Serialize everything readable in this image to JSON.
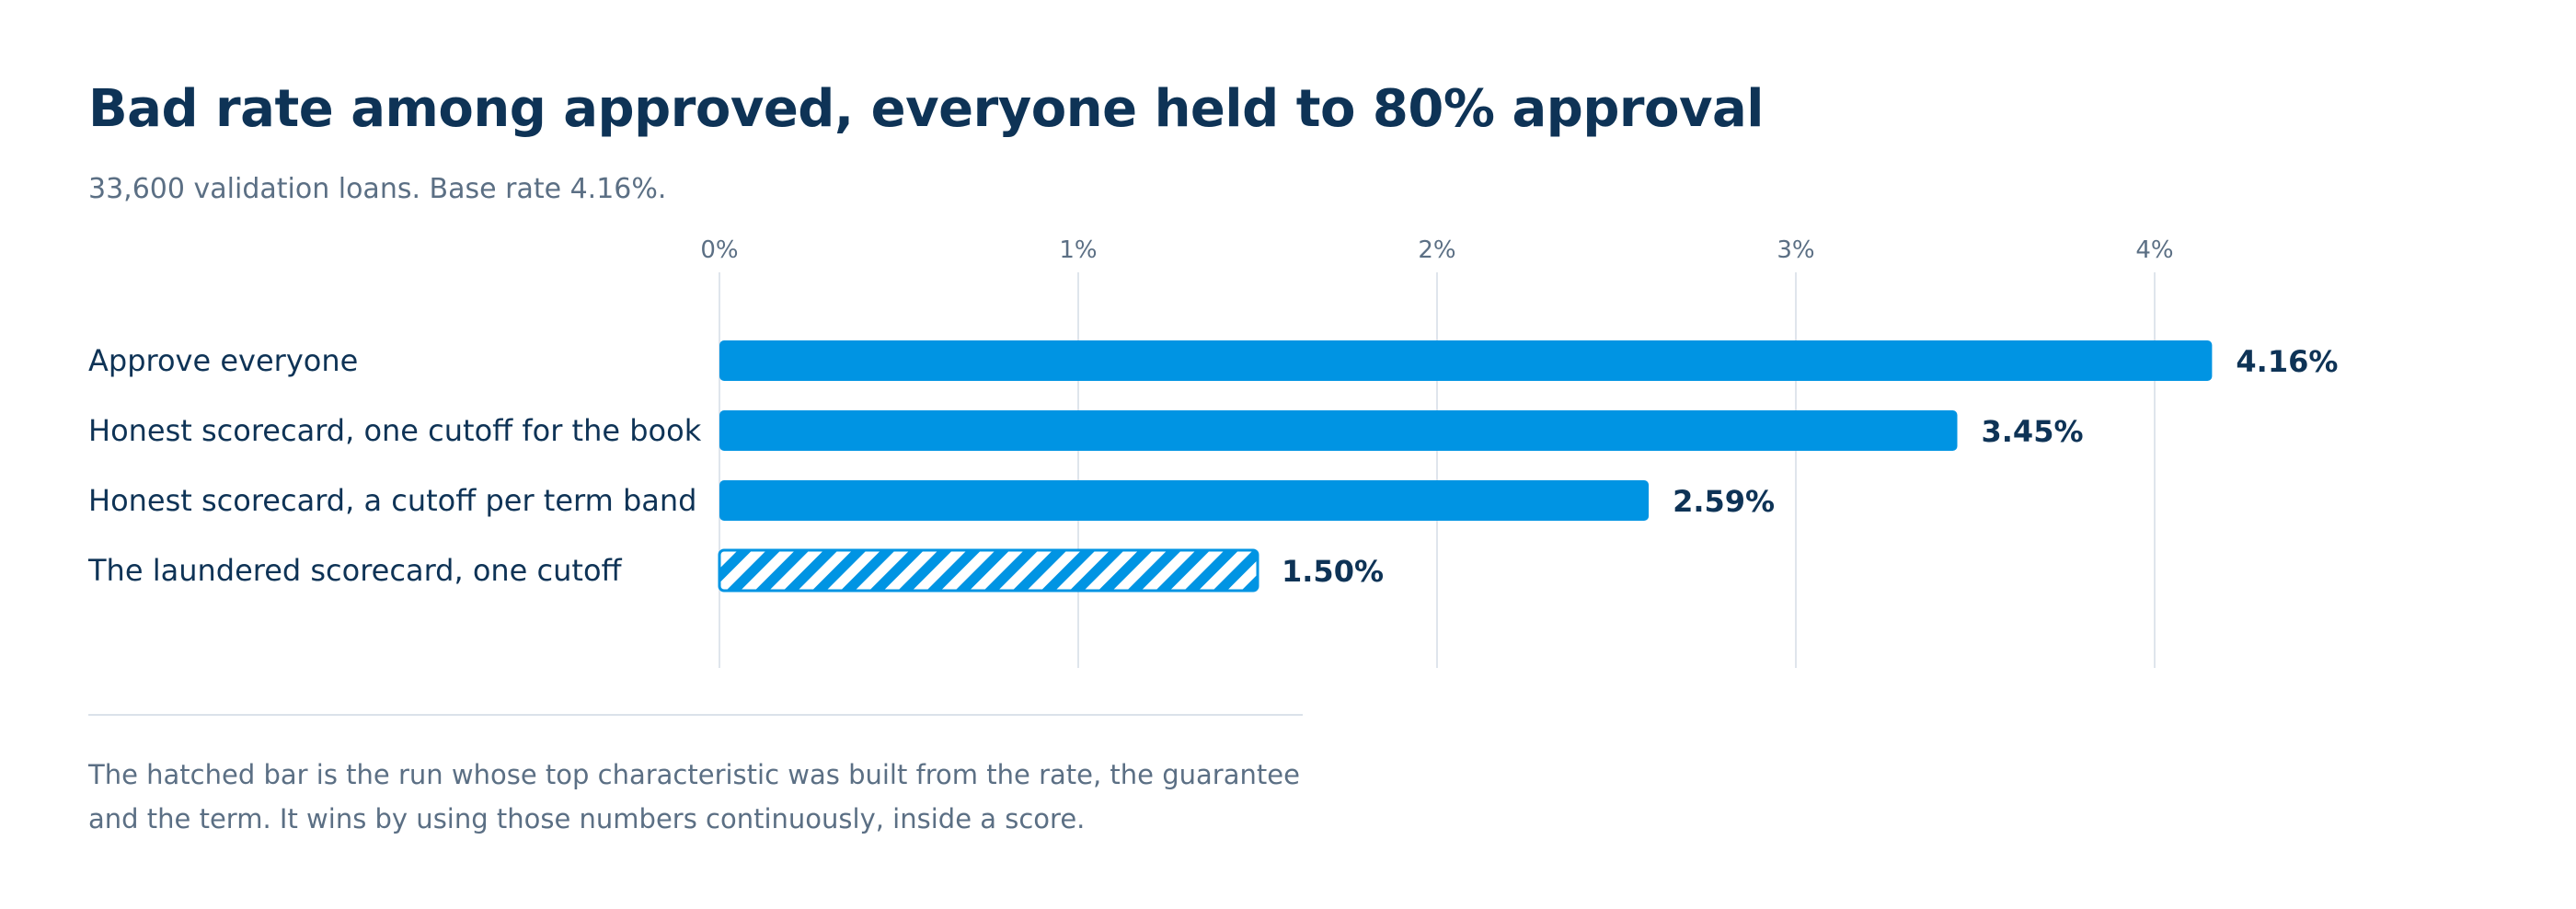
{
  "colors": {
    "bar": "#0094e3",
    "gridline": "#dfe5ec",
    "tick_text": "#5b6f84",
    "label_text": "#0e3356",
    "hatch_bg": "#ffffff"
  },
  "footnote": "The hatched bar is the run whose top characteristic was built from the rate, the guarantee and the term. It wins by using those numbers continuously, inside a score.",
  "chart_data": {
    "type": "bar",
    "orientation": "horizontal",
    "title": "Bad rate among approved, everyone held to 80% approval",
    "subtitle": "33,600 validation loans. Base rate 4.16%.",
    "categories": [
      "Approve everyone",
      "Honest scorecard, one cutoff for the book",
      "Honest scorecard, a cutoff per term band",
      "The laundered scorecard, one cutoff"
    ],
    "values": [
      4.16,
      3.45,
      2.59,
      1.5
    ],
    "value_labels": [
      "4.16%",
      "3.45%",
      "2.59%",
      "1.50%"
    ],
    "hatched": [
      false,
      false,
      false,
      true
    ],
    "xticks": [
      0,
      1,
      2,
      3,
      4
    ],
    "xtick_labels": [
      "0%",
      "1%",
      "2%",
      "3%",
      "4%"
    ],
    "xlim": [
      0,
      4.6
    ],
    "xaxis_position": "top",
    "grid": "vertical",
    "xlabel": "",
    "ylabel": ""
  }
}
